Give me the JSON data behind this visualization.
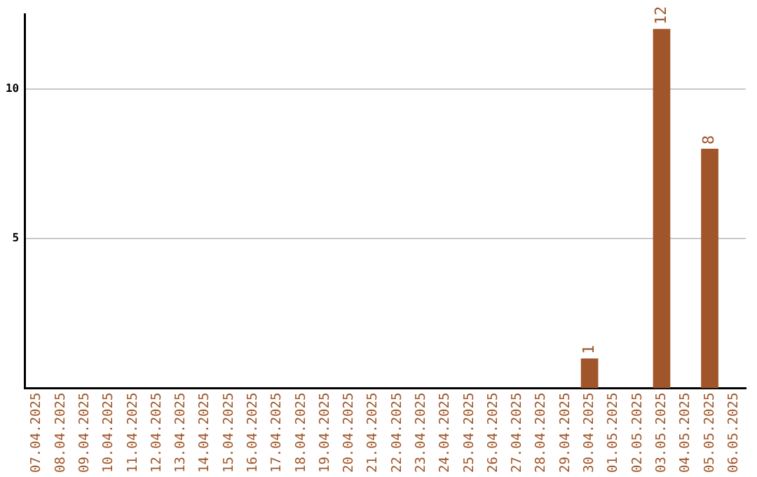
{
  "chart_data": {
    "type": "bar",
    "categories": [
      "07.04.2025",
      "08.04.2025",
      "09.04.2025",
      "10.04.2025",
      "11.04.2025",
      "12.04.2025",
      "13.04.2025",
      "14.04.2025",
      "15.04.2025",
      "16.04.2025",
      "17.04.2025",
      "18.04.2025",
      "19.04.2025",
      "20.04.2025",
      "21.04.2025",
      "22.04.2025",
      "23.04.2025",
      "24.04.2025",
      "25.04.2025",
      "26.04.2025",
      "27.04.2025",
      "28.04.2025",
      "29.04.2025",
      "30.04.2025",
      "01.05.2025",
      "02.05.2025",
      "03.05.2025",
      "04.05.2025",
      "05.05.2025",
      "06.05.2025"
    ],
    "values": [
      0,
      0,
      0,
      0,
      0,
      0,
      0,
      0,
      0,
      0,
      0,
      0,
      0,
      0,
      0,
      0,
      0,
      0,
      0,
      0,
      0,
      0,
      0,
      1,
      0,
      0,
      12,
      0,
      8,
      0
    ],
    "value_labels": [
      null,
      null,
      null,
      null,
      null,
      null,
      null,
      null,
      null,
      null,
      null,
      null,
      null,
      null,
      null,
      null,
      null,
      null,
      null,
      null,
      null,
      null,
      null,
      "1",
      null,
      null,
      "12",
      null,
      "8",
      null
    ],
    "color": "#a0562a",
    "ylim": [
      0,
      12.5
    ],
    "yticks": [
      5,
      10
    ],
    "grid": "y"
  }
}
